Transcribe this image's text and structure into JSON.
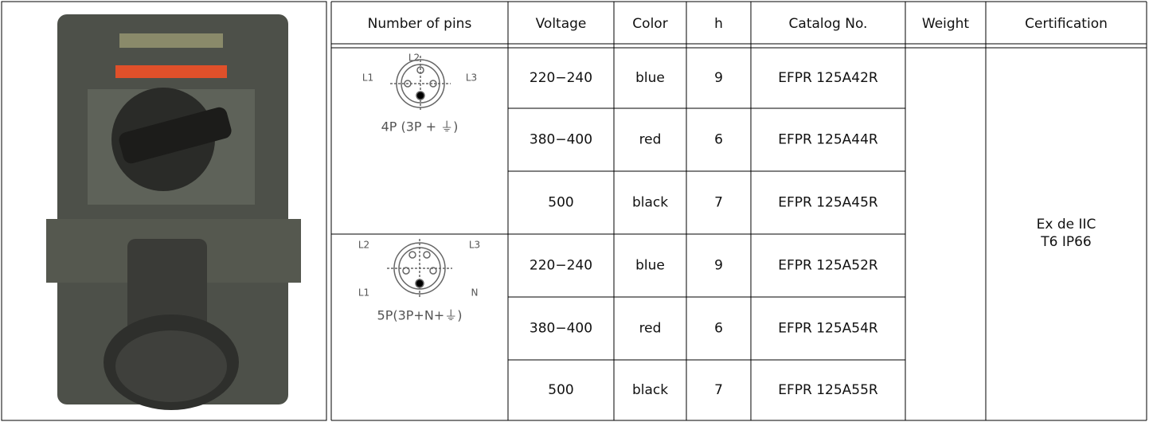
{
  "table": {
    "headers": [
      "Number of pins",
      "Voltage",
      "Color",
      "h",
      "Catalog No.",
      "Weight",
      "Certification"
    ],
    "groups": [
      {
        "pin_labels": [
          "L2",
          "L1",
          "L3"
        ],
        "caption": "4P (3P + ⏚)",
        "rows": [
          [
            "220−240",
            "blue",
            "9",
            "EFPR 125A42R"
          ],
          [
            "380−400",
            "red",
            "6",
            "EFPR 125A44R"
          ],
          [
            "500",
            "black",
            "7",
            "EFPR 125A45R"
          ]
        ]
      },
      {
        "pin_labels": [
          "L2",
          "L3",
          "L1",
          "N"
        ],
        "caption": "5P(3P+N+⏚)",
        "rows": [
          [
            "220−240",
            "blue",
            "9",
            "EFPR 125A52R"
          ],
          [
            "380−400",
            "red",
            "6",
            "EFPR 125A54R"
          ],
          [
            "500",
            "black",
            "7",
            "EFPR 125A55R"
          ]
        ]
      }
    ],
    "certification": [
      "Ex de IIC",
      "T6 IP66"
    ]
  }
}
